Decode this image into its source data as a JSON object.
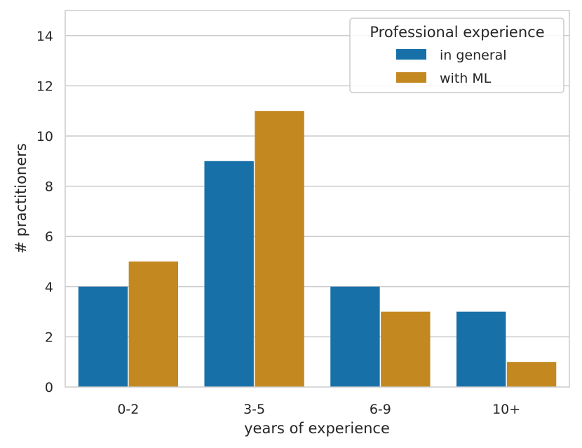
{
  "chart_data": {
    "type": "bar",
    "categories": [
      "0-2",
      "3-5",
      "6-9",
      "10+"
    ],
    "series": [
      {
        "name": "in general",
        "values": [
          4,
          9,
          4,
          3
        ],
        "color": "#1870a8"
      },
      {
        "name": "with ML",
        "values": [
          5,
          11,
          3,
          1
        ],
        "color": "#c48820"
      }
    ],
    "xlabel": "years of experience",
    "ylabel": "# practitioners",
    "ylim": [
      0,
      15
    ],
    "yticks": [
      0,
      2,
      4,
      6,
      8,
      10,
      12,
      14
    ],
    "grid": true,
    "legend": {
      "title": "Professional experience",
      "placement": "top-right"
    }
  }
}
